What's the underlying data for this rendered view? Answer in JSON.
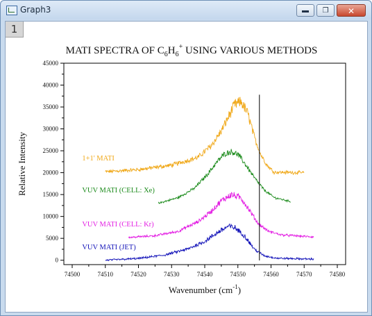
{
  "window": {
    "title": "Graph3",
    "layer_label": "1",
    "minimize_glyph": "▬",
    "maximize_glyph": "❐",
    "close_glyph": "✕"
  },
  "chart_data": {
    "type": "line",
    "title": {
      "main": "MATI SPECTRA OF C",
      "sub1": "6",
      "mid": "H",
      "sub2": "6",
      "sup": "+",
      "tail": " USING VARIOUS METHODS"
    },
    "xlabel": {
      "main": "Wavenumber  (cm",
      "sup": "-1",
      "tail": ")"
    },
    "ylabel": "Relative Intensity",
    "xlim": [
      74500,
      74580
    ],
    "ylim": [
      -1000,
      45000
    ],
    "xticks": [
      74500,
      74510,
      74520,
      74530,
      74540,
      74550,
      74560,
      74570,
      74580
    ],
    "yticks": [
      0,
      5000,
      10000,
      15000,
      20000,
      25000,
      30000,
      35000,
      40000,
      45000
    ],
    "grid": false,
    "vertical_marker_x": 74556.5,
    "vertical_marker_y": [
      -50,
      37800
    ],
    "series": [
      {
        "name": "1+1' MATI",
        "color": "#f0a818",
        "label_pos": [
          74503,
          22800
        ],
        "x_range": [
          74510,
          74570
        ],
        "noise": 1300,
        "points": [
          [
            74510,
            20200
          ],
          [
            74520,
            20700
          ],
          [
            74530,
            21700
          ],
          [
            74538,
            23500
          ],
          [
            74542,
            26200
          ],
          [
            74545,
            29500
          ],
          [
            74547,
            32500
          ],
          [
            74549,
            35500
          ],
          [
            74551,
            36200
          ],
          [
            74553,
            33500
          ],
          [
            74555,
            28000
          ],
          [
            74557,
            24000
          ],
          [
            74559,
            21500
          ],
          [
            74561,
            20100
          ],
          [
            74570,
            20000
          ]
        ]
      },
      {
        "name": "VUV MATI (CELL:  Xe)",
        "color": "#1a8a1a",
        "label_pos": [
          74503,
          15500
        ],
        "x_range": [
          74526,
          74566
        ],
        "noise": 650,
        "points": [
          [
            74526,
            13000
          ],
          [
            74532,
            14300
          ],
          [
            74537,
            16500
          ],
          [
            74541,
            19800
          ],
          [
            74544,
            22700
          ],
          [
            74546,
            24300
          ],
          [
            74548,
            24800
          ],
          [
            74550,
            24200
          ],
          [
            74552,
            22200
          ],
          [
            74555,
            18800
          ],
          [
            74558,
            16000
          ],
          [
            74561,
            14300
          ],
          [
            74566,
            13400
          ]
        ]
      },
      {
        "name": "VUV MATI (CELL:  Kr)",
        "color": "#e31ee3",
        "label_pos": [
          74503,
          7700
        ],
        "x_range": [
          74517,
          74573
        ],
        "noise": 750,
        "points": [
          [
            74517,
            5200
          ],
          [
            74525,
            5600
          ],
          [
            74532,
            6600
          ],
          [
            74538,
            8800
          ],
          [
            74542,
            11200
          ],
          [
            74545,
            13600
          ],
          [
            74548,
            15000
          ],
          [
            74551,
            14200
          ],
          [
            74553,
            12000
          ],
          [
            74556,
            8500
          ],
          [
            74559,
            6700
          ],
          [
            74563,
            5800
          ],
          [
            74573,
            5300
          ]
        ]
      },
      {
        "name": "VUV MATI (JET)",
        "color": "#1212b8",
        "label_pos": [
          74503,
          2500
        ],
        "x_range": [
          74510,
          74573
        ],
        "noise": 650,
        "points": [
          [
            74510,
            0
          ],
          [
            74520,
            400
          ],
          [
            74528,
            1200
          ],
          [
            74535,
            2600
          ],
          [
            74540,
            4300
          ],
          [
            74544,
            6400
          ],
          [
            74547,
            7700
          ],
          [
            74549,
            7500
          ],
          [
            74552,
            5600
          ],
          [
            74555,
            2500
          ],
          [
            74558,
            1000
          ],
          [
            74562,
            450
          ],
          [
            74573,
            250
          ]
        ]
      }
    ]
  }
}
